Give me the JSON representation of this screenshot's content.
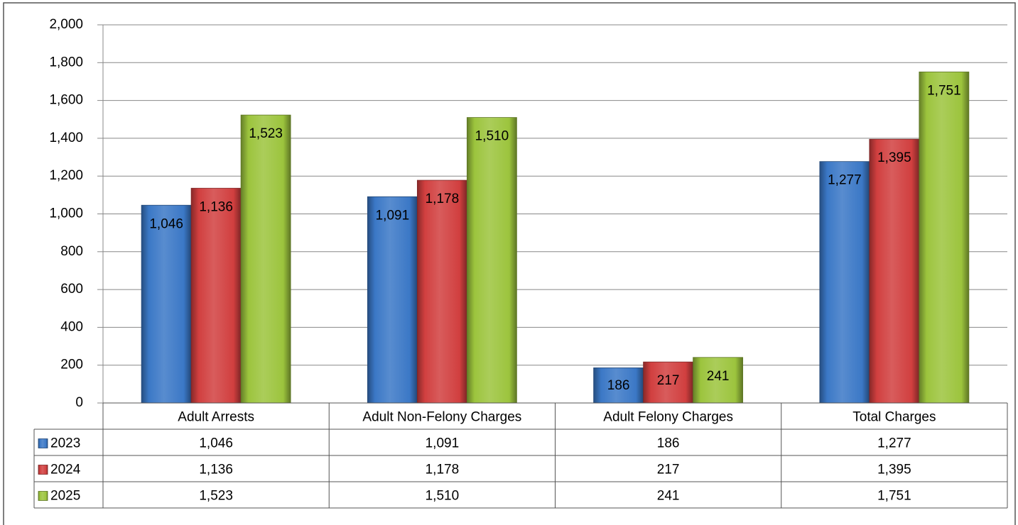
{
  "chart_data": {
    "type": "bar",
    "categories": [
      "Adult Arrests",
      "Adult Non-Felony Charges",
      "Adult Felony Charges",
      "Total Charges"
    ],
    "series": [
      {
        "name": "2023",
        "color": "#3b78c6",
        "values": [
          1046,
          1091,
          186,
          1277
        ],
        "value_labels": [
          "1,046",
          "1,091",
          "186",
          "1,277"
        ]
      },
      {
        "name": "2024",
        "color": "#d13f3f",
        "values": [
          1136,
          1178,
          217,
          1395
        ],
        "value_labels": [
          "1,136",
          "1,178",
          "217",
          "1,395"
        ]
      },
      {
        "name": "2025",
        "color": "#9cc43d",
        "values": [
          1523,
          1510,
          241,
          1751
        ],
        "value_labels": [
          "1,523",
          "1,510",
          "241",
          "1,751"
        ]
      }
    ],
    "ylim": [
      0,
      2000
    ],
    "yticks": [
      0,
      200,
      400,
      600,
      800,
      {
        "value": 1000,
        "label": "1,000"
      },
      {
        "value": 1200,
        "label": "1,200"
      },
      {
        "value": 1400,
        "label": "1,400"
      },
      {
        "value": 1600,
        "label": "1,600"
      },
      {
        "value": 1800,
        "label": "1,800"
      },
      {
        "value": 2000,
        "label": "2,000"
      }
    ],
    "grid": true
  }
}
